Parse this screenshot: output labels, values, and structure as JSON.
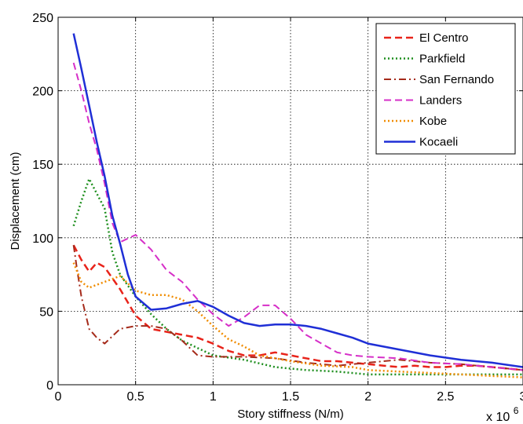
{
  "chart_data": {
    "type": "line",
    "xlabel": "Story stiffness (N/m)",
    "ylabel": "Displacement (cm)",
    "x_multiplier_label": "x 10",
    "x_multiplier_exp": "6",
    "xlim": [
      0,
      3
    ],
    "ylim": [
      0,
      250
    ],
    "xticks": [
      0,
      0.5,
      1,
      1.5,
      2,
      2.5,
      3
    ],
    "xtick_labels": [
      "0",
      "0.5",
      "1",
      "1.5",
      "2",
      "2.5",
      "3"
    ],
    "yticks": [
      0,
      50,
      100,
      150,
      200,
      250
    ],
    "ytick_labels": [
      "0",
      "50",
      "100",
      "150",
      "200",
      "250"
    ],
    "grid": true,
    "legend_position": "top-right",
    "series": [
      {
        "name": "El Centro",
        "color": "#e8231a",
        "dash": "dashed",
        "width": 2.5,
        "x": [
          0.1,
          0.15,
          0.2,
          0.25,
          0.3,
          0.4,
          0.5,
          0.6,
          0.7,
          0.8,
          0.9,
          1.0,
          1.1,
          1.2,
          1.3,
          1.4,
          1.5,
          1.6,
          1.7,
          1.8,
          1.9,
          2.0,
          2.1,
          2.2,
          2.3,
          2.4,
          2.5,
          2.6,
          2.7,
          2.8,
          2.9,
          3.0
        ],
        "y": [
          95,
          85,
          77,
          83,
          80,
          65,
          47,
          38,
          36,
          34,
          32,
          28,
          23,
          20,
          20,
          22,
          20,
          18,
          16,
          16,
          15,
          14,
          13,
          12,
          13,
          12,
          12,
          13,
          13,
          12,
          11,
          10
        ]
      },
      {
        "name": "Parkfield",
        "color": "#1f8f1f",
        "dash": "dotted",
        "width": 2.5,
        "x": [
          0.1,
          0.15,
          0.2,
          0.25,
          0.3,
          0.35,
          0.4,
          0.5,
          0.6,
          0.7,
          0.8,
          0.9,
          1.0,
          1.2,
          1.4,
          1.6,
          1.8,
          2.0,
          2.2,
          2.4,
          2.6,
          2.8,
          3.0
        ],
        "y": [
          108,
          125,
          140,
          130,
          120,
          90,
          75,
          60,
          48,
          38,
          30,
          25,
          20,
          17,
          12,
          10,
          9,
          7,
          7,
          7,
          7,
          7,
          7
        ]
      },
      {
        "name": "San Fernando",
        "color": "#a52a1a",
        "dash": "dashdot",
        "width": 2,
        "x": [
          0.1,
          0.12,
          0.15,
          0.2,
          0.25,
          0.3,
          0.35,
          0.4,
          0.5,
          0.6,
          0.7,
          0.8,
          0.9,
          1.0,
          1.2,
          1.4,
          1.6,
          1.8,
          2.0,
          2.2,
          2.4,
          2.6,
          2.8,
          3.0
        ],
        "y": [
          95,
          80,
          60,
          38,
          32,
          28,
          33,
          38,
          40,
          40,
          38,
          30,
          20,
          19,
          19,
          18,
          15,
          13,
          15,
          17,
          15,
          14,
          12,
          10
        ]
      },
      {
        "name": "Landers",
        "color": "#d62fc8",
        "dash": "dashed",
        "width": 2,
        "x": [
          0.1,
          0.15,
          0.2,
          0.25,
          0.3,
          0.35,
          0.4,
          0.5,
          0.55,
          0.6,
          0.7,
          0.8,
          0.9,
          1.0,
          1.1,
          1.2,
          1.3,
          1.4,
          1.5,
          1.6,
          1.7,
          1.8,
          1.9,
          2.0,
          2.2,
          2.4,
          2.6,
          2.8,
          3.0
        ],
        "y": [
          219,
          200,
          178,
          160,
          137,
          110,
          97,
          102,
          97,
          92,
          78,
          70,
          58,
          48,
          40,
          46,
          54,
          54,
          45,
          34,
          28,
          22,
          20,
          19,
          18,
          15,
          14,
          12,
          10
        ]
      },
      {
        "name": "Kobe",
        "color": "#f08c00",
        "dash": "dotted",
        "width": 2.5,
        "x": [
          0.1,
          0.15,
          0.2,
          0.3,
          0.4,
          0.5,
          0.6,
          0.7,
          0.8,
          0.9,
          1.0,
          1.1,
          1.2,
          1.3,
          1.5,
          1.7,
          1.9,
          2.0,
          2.2,
          2.4,
          2.6,
          2.8,
          3.0
        ],
        "y": [
          83,
          70,
          66,
          70,
          74,
          64,
          61,
          61,
          58,
          50,
          40,
          31,
          26,
          20,
          16,
          13,
          12,
          10,
          9,
          8,
          7,
          6,
          5
        ]
      },
      {
        "name": "Kocaeli",
        "color": "#1f2fd6",
        "dash": "solid",
        "width": 2.5,
        "x": [
          0.1,
          0.15,
          0.2,
          0.25,
          0.3,
          0.35,
          0.4,
          0.45,
          0.5,
          0.6,
          0.7,
          0.8,
          0.9,
          1.0,
          1.1,
          1.2,
          1.3,
          1.4,
          1.5,
          1.6,
          1.7,
          1.8,
          1.9,
          2.0,
          2.2,
          2.4,
          2.6,
          2.8,
          3.0
        ],
        "y": [
          239,
          215,
          190,
          165,
          142,
          115,
          96,
          75,
          60,
          51,
          52,
          55,
          57,
          53,
          47,
          42,
          40,
          41,
          41,
          40,
          38,
          35,
          32,
          28,
          24,
          20,
          17,
          15,
          12
        ]
      }
    ]
  }
}
